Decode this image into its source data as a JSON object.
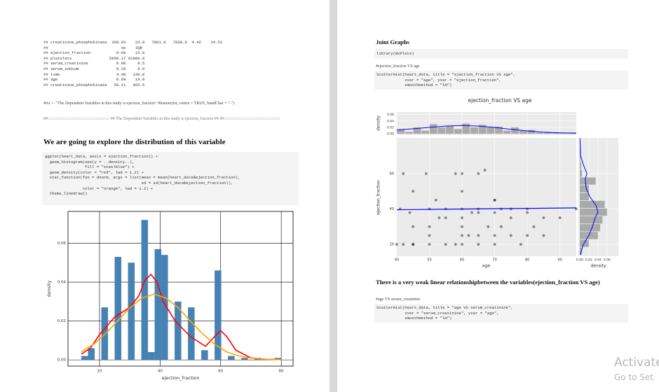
{
  "page1": {
    "output_lines": [
      "## creatinine_phosphokinase  269.83    23.0   7861.0   7838.0  4.42    24.53",
      "##                               se    IQR",
      "## ejection_fraction           0.68    15.0",
      "## platelets                5656.17 91000.0",
      "## serum_creatinine            0.06     0.5",
      "## serum_sodium                0.26     6.0",
      "## time                        4.49   130.0",
      "## age                         0.69    19.0",
      "## creatinine_phosphokinase   56.11   465.5"
    ],
    "comment": "#txt <- \"The Dependent Variables in this study is ejection_fraction\" #banner(txt, centre = TRUE, bandChar = \"-\")",
    "banner": "##::::::::::::::::::::::::::::::::::::::::::::::::::::: ## The Dependent Variables in this study is ejection_fraction ## ##::::::::::::::::::::::::::::::::::::::::::::::::",
    "heading": "We are going to explore the distribution of this variable",
    "code_lines": [
      "ggplot(heart_data, aes(x = ejection_fraction)) +",
      "  geom_histogram(aes(y = ..density..),",
      "                 fill = \"steelblue\") +",
      "  geom_density(color = \"red\", lwd = 1.2) +",
      "  stat_function(fun = dnorm, args = list(mean = mean(heart_data$ejection_fraction),",
      "                                         sd = sd(heart_data$ejection_fraction)),",
      "                color = \"orange\", lwd = 1.2) +",
      "  theme_linedraw()"
    ]
  },
  "page2": {
    "heading": "Joint Graphs",
    "code1": [
      "library(WVPlots)"
    ],
    "comment1": "#ejection_fraction VS age",
    "code2": [
      "ScatterHist(heart_data, title = \"ejection_fraction VS age\",",
      "            xvar = \"age\", yvar = \"ejection_fraction\",",
      "            smoothmethod = \"lm\")"
    ],
    "conclusion": "There is a very weak linear relationshipbetween the variables(ejection_fraction VS age)",
    "comment2": "#age VS serum_creatinine",
    "code3": [
      "ScatterHist(heart_data, title = \"age VS serum_creatinine\",",
      "            xvar = \"serum_creatinine\", yvar = \"age\",",
      "            smoothmethod = \"lm\")"
    ]
  },
  "watermark": [
    "Activate",
    "Go to Set"
  ],
  "chart_data": [
    {
      "type": "histogram",
      "bins": [
        14,
        16.2,
        18.4,
        20.6,
        22.8,
        25,
        27.2,
        29.4,
        31.6,
        33.8,
        36,
        38.2,
        40.4,
        42.6,
        44.8,
        47,
        49.2,
        51.4,
        53.6,
        55.8,
        58,
        60.2,
        62.4,
        64.6,
        66.8,
        69,
        71.2,
        73.4,
        75.6,
        77.8,
        80
      ],
      "values": [
        0.002,
        0.006,
        0,
        0.027,
        0,
        0.053,
        0,
        0.05,
        0,
        0.072,
        0.004,
        0.057,
        0.054,
        0,
        0.03,
        0,
        0.027,
        0,
        0.005,
        0,
        0.046,
        0,
        0.002,
        0,
        0.001,
        0,
        0.001,
        0,
        0,
        0.001
      ],
      "color": "#4682b4",
      "xlim": [
        9.6,
        83.9
      ],
      "ylim": [
        -0.0032,
        0.0764
      ],
      "xticks": [
        20,
        40,
        60,
        80
      ],
      "yticks": [
        {
          "value": 0,
          "label": "0.00"
        },
        {
          "value": 0.02,
          "label": "0.02"
        },
        {
          "value": 0.04,
          "label": "0.04"
        },
        {
          "value": 0.06,
          "label": "0.06"
        }
      ],
      "xlabel": "ejection_fraction",
      "ylabel": "density",
      "grid": true,
      "lines": [
        {
          "color": "#ff0000",
          "x": [
            14,
            17,
            20,
            25,
            30,
            33,
            35,
            37,
            39,
            41,
            45,
            50,
            55,
            58,
            60,
            62,
            65,
            70,
            75,
            80
          ],
          "y": [
            0.003,
            0.006,
            0.013,
            0.022,
            0.027,
            0.033,
            0.041,
            0.044,
            0.04,
            0.03,
            0.02,
            0.012,
            0.007,
            0.012,
            0.015,
            0.012,
            0.005,
            0.001,
            0.0003,
            0.0002
          ]
        },
        {
          "color": "#ffa500",
          "x": [
            14,
            18,
            22,
            26,
            30,
            34,
            38,
            42,
            46,
            50,
            54,
            58,
            62,
            66,
            70,
            75,
            80
          ],
          "y": [
            0.0041,
            0.008,
            0.0135,
            0.02,
            0.0268,
            0.0318,
            0.0338,
            0.0318,
            0.0268,
            0.02,
            0.0135,
            0.008,
            0.0041,
            0.002,
            0.0009,
            0.0003,
            0.0001
          ]
        }
      ]
    },
    {
      "type": "scatter",
      "title": "ejection_fraction VS age",
      "x": [
        40,
        42,
        45,
        45,
        50,
        50,
        55,
        58,
        60,
        60,
        60,
        62,
        65,
        65,
        68,
        70,
        70,
        72,
        75,
        75,
        78,
        80,
        80,
        82,
        85,
        85,
        90,
        95,
        45,
        50,
        53,
        55,
        60,
        63,
        65,
        70,
        72,
        75,
        80,
        50,
        55,
        60,
        65,
        70,
        42,
        49,
        58,
        60,
        65,
        45,
        60,
        70,
        41,
        44,
        52,
        67
      ],
      "y": [
        20,
        20,
        20,
        20,
        20,
        25,
        20,
        20,
        20,
        25,
        30,
        25,
        20,
        25,
        30,
        20,
        25,
        30,
        25,
        35,
        20,
        25,
        38,
        30,
        35,
        25,
        35,
        40,
        30,
        30,
        35,
        35,
        35,
        38,
        38,
        38,
        40,
        40,
        40,
        40,
        40,
        40,
        40,
        45,
        60,
        60,
        60,
        60,
        60,
        50,
        50,
        45,
        40,
        38,
        45,
        62
      ],
      "color": "#000000",
      "xlim": [
        39.8,
        95
      ],
      "ylim": [
        13.3,
        80.2
      ],
      "xticks": [
        40,
        50,
        60,
        70,
        80,
        90
      ],
      "yticks": [
        20,
        40,
        60
      ],
      "xlabel": "age",
      "ylabel": "ejection_fraction",
      "fit": {
        "color": "#0000ff",
        "x": [
          40,
          95
        ],
        "y": [
          39.6,
          40.6
        ]
      },
      "top_margin": {
        "bins": [
          40,
          42.5,
          45,
          47.5,
          50,
          52.5,
          55,
          57.5,
          60,
          62.5,
          65,
          67.5,
          70,
          72.5,
          75,
          77.5,
          80,
          82.5,
          85,
          87.5,
          90,
          92.5,
          95
        ],
        "values": [
          0.014,
          0.006,
          0.02,
          0.01,
          0.03,
          0.02,
          0.024,
          0.015,
          0.032,
          0.02,
          0.028,
          0.02,
          0.022,
          0.01,
          0.02,
          0.01,
          0.012,
          0.004,
          0.006,
          0.004,
          0.002,
          0.004
        ],
        "color": "#aaaaaa",
        "ylim": [
          -0.004,
          0.068
        ],
        "yticks": [
          {
            "value": 0,
            "label": "0.00"
          },
          {
            "value": 0.02,
            "label": "0.02"
          },
          {
            "value": 0.04,
            "label": "0.04"
          },
          {
            "value": 0.06,
            "label": "0.06"
          }
        ],
        "ylabel": "density",
        "density": {
          "color": "#0000ff",
          "x": [
            40,
            45,
            50,
            55,
            60,
            65,
            70,
            75,
            80,
            85,
            90,
            95
          ],
          "y": [
            0.012,
            0.016,
            0.02,
            0.024,
            0.026,
            0.024,
            0.02,
            0.014,
            0.009,
            0.005,
            0.003,
            0.002
          ]
        }
      },
      "right_margin": {
        "bins": [
          14,
          18.4,
          22.8,
          27.2,
          31.6,
          36,
          40.4,
          44.8,
          49.2,
          53.6,
          58,
          62.4,
          66.8,
          71.2,
          75.6,
          80
        ],
        "values": [
          0.005,
          0.02,
          0.04,
          0.045,
          0.05,
          0.06,
          0.055,
          0.02,
          0.02,
          0.035,
          0.005,
          0.003,
          0.002,
          0.001,
          0.001
        ],
        "color": "#aaaaaa",
        "xlim": [
          -0.003,
          0.085
        ],
        "xticks": [
          {
            "value": 0,
            "label": "0.00"
          },
          {
            "value": 0.02,
            "label": "0.02"
          },
          {
            "value": 0.04,
            "label": "0.04"
          },
          {
            "value": 0.06,
            "label": "0.06"
          }
        ],
        "xlabel": "density",
        "density": {
          "color": "#0000ff",
          "ef": [
            14,
            20,
            25,
            30,
            35,
            38,
            42,
            47,
            52,
            57,
            60,
            65,
            70,
            80
          ],
          "values": [
            0.001,
            0.008,
            0.02,
            0.028,
            0.034,
            0.04,
            0.036,
            0.022,
            0.014,
            0.012,
            0.016,
            0.008,
            0.002,
            0.0005
          ]
        }
      }
    }
  ]
}
